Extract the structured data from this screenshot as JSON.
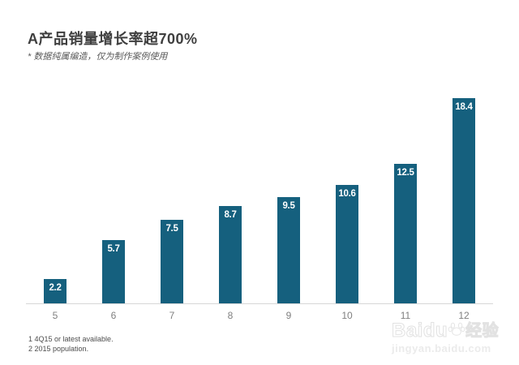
{
  "header": {
    "title": "A产品销量增长率超700%",
    "subtitle": "* 数据纯属编造，仅为制作案例使用"
  },
  "chart_data": {
    "type": "bar",
    "categories": [
      "5",
      "6",
      "7",
      "8",
      "9",
      "10",
      "11",
      "12"
    ],
    "values": [
      2.2,
      5.7,
      7.5,
      8.7,
      9.5,
      10.6,
      12.5,
      18.4
    ],
    "title": "A产品销量增长率超700%",
    "subtitle": "* 数据纯属编造，仅为制作案例使用",
    "xlabel": "",
    "ylabel": "",
    "ylim": [
      0,
      20
    ],
    "grid": false,
    "legend": false,
    "value_labels": "inside-top, white, bold",
    "bar_color": "#15607e",
    "value_label_color": "#ffffff",
    "axis_line_color": "#d7d7d7",
    "tick_label_color": "#808080"
  },
  "footnotes": {
    "line1": "1 4Q15 or latest available.",
    "line2": "2 2015 population."
  },
  "watermark": {
    "brand": "Baidu",
    "suffix": "经验",
    "url": "jingyan.baidu.com"
  }
}
